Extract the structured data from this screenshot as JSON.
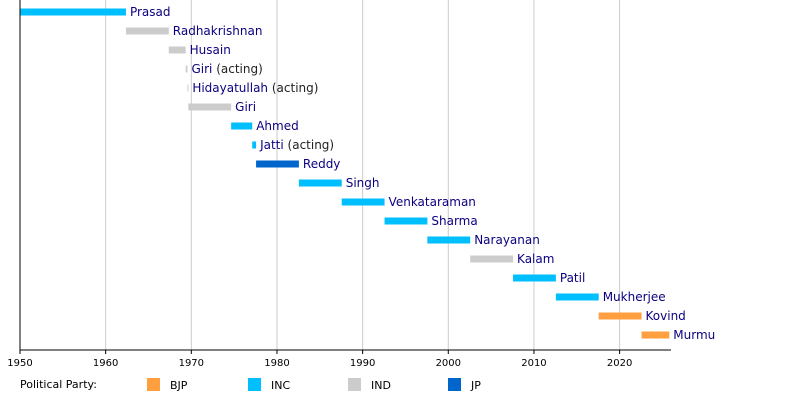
{
  "chart_data": {
    "type": "timeline",
    "xlim": [
      1950,
      2026
    ],
    "xticks": [
      1950,
      1960,
      1970,
      1980,
      1990,
      2000,
      2010,
      2020
    ],
    "grid": true,
    "legend_title": "Political Party:",
    "parties": [
      {
        "name": "BJP",
        "color": "#ff9f40"
      },
      {
        "name": "INC",
        "color": "#00bfff"
      },
      {
        "name": "IND",
        "color": "#cccccc"
      },
      {
        "name": "JP",
        "color": "#0066cc"
      }
    ],
    "bars": [
      {
        "name": "Prasad",
        "party": "INC",
        "start": 1950.07,
        "end": 1962.37
      },
      {
        "name": "Radhakrishnan",
        "party": "IND",
        "start": 1962.37,
        "end": 1967.37
      },
      {
        "name": "Husain",
        "party": "IND",
        "start": 1967.37,
        "end": 1969.34
      },
      {
        "name": "Giri",
        "note": "(acting)",
        "party": "IND",
        "start": 1969.34,
        "end": 1969.55
      },
      {
        "name": "Hidayatullah",
        "note": "(acting)",
        "party": "IND",
        "start": 1969.55,
        "end": 1969.65
      },
      {
        "name": "Giri",
        "party": "IND",
        "start": 1969.65,
        "end": 1974.65
      },
      {
        "name": "Ahmed",
        "party": "INC",
        "start": 1974.65,
        "end": 1977.11
      },
      {
        "name": "Jatti",
        "note": "(acting)",
        "party": "INC",
        "start": 1977.11,
        "end": 1977.56
      },
      {
        "name": "Reddy",
        "party": "JP",
        "start": 1977.56,
        "end": 1982.56
      },
      {
        "name": "Singh",
        "party": "INC",
        "start": 1982.56,
        "end": 1987.56
      },
      {
        "name": "Venkataraman",
        "party": "INC",
        "start": 1987.56,
        "end": 1992.56
      },
      {
        "name": "Sharma",
        "party": "INC",
        "start": 1992.56,
        "end": 1997.56
      },
      {
        "name": "Narayanan",
        "party": "INC",
        "start": 1997.56,
        "end": 2002.56
      },
      {
        "name": "Kalam",
        "party": "IND",
        "start": 2002.56,
        "end": 2007.56
      },
      {
        "name": "Patil",
        "party": "INC",
        "start": 2007.56,
        "end": 2012.56
      },
      {
        "name": "Mukherjee",
        "party": "INC",
        "start": 2012.56,
        "end": 2017.56
      },
      {
        "name": "Kovind",
        "party": "BJP",
        "start": 2017.56,
        "end": 2022.56
      },
      {
        "name": "Murmu",
        "party": "BJP",
        "start": 2022.56,
        "end": 2025.8
      }
    ]
  }
}
